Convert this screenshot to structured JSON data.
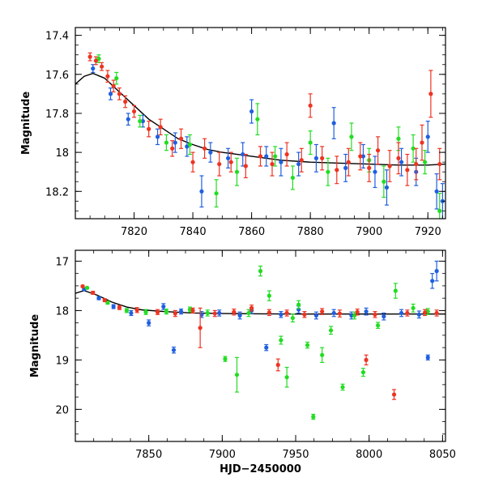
{
  "chart_data": [
    {
      "type": "scatter",
      "panel": "top",
      "ylabel": "Magnitude",
      "xlim": [
        7800,
        7926
      ],
      "ylim": [
        18.34,
        17.36
      ],
      "y_inverted": true,
      "xticks": [
        7820,
        7840,
        7860,
        7880,
        7900,
        7920
      ],
      "xtick_labels": [
        "7820",
        "7840",
        "7860",
        "7880",
        "7900",
        "7920"
      ],
      "yticks": [
        17.4,
        17.6,
        17.8,
        18.0,
        18.2
      ],
      "ytick_labels": [
        "17.4",
        "17.6",
        "17.8",
        "18",
        "18.2"
      ],
      "series": [
        {
          "color": "#1f5fe0",
          "points": [
            [
              7806,
              17.57,
              0.02
            ],
            [
              7812,
              17.7,
              0.03
            ],
            [
              7818,
              17.83,
              0.03
            ],
            [
              7823,
              17.84,
              0.03
            ],
            [
              7828,
              17.92,
              0.04
            ],
            [
              7834,
              17.95,
              0.05
            ],
            [
              7838,
              17.97,
              0.05
            ],
            [
              7843,
              18.2,
              0.08
            ],
            [
              7846,
              18.0,
              0.05
            ],
            [
              7852,
              18.03,
              0.05
            ],
            [
              7857,
              18.01,
              0.06
            ],
            [
              7860,
              17.79,
              0.06
            ],
            [
              7865,
              18.02,
              0.05
            ],
            [
              7870,
              18.05,
              0.07
            ],
            [
              7876,
              18.06,
              0.06
            ],
            [
              7882,
              18.03,
              0.07
            ],
            [
              7888,
              17.85,
              0.08
            ],
            [
              7892,
              18.08,
              0.07
            ],
            [
              7898,
              18.02,
              0.06
            ],
            [
              7902,
              18.1,
              0.08
            ],
            [
              7906,
              18.18,
              0.09
            ],
            [
              7911,
              18.05,
              0.07
            ],
            [
              7916,
              18.1,
              0.07
            ],
            [
              7920,
              17.92,
              0.08
            ],
            [
              7923,
              18.2,
              0.09
            ],
            [
              7925,
              18.25,
              0.09
            ]
          ]
        },
        {
          "color": "#22dd22",
          "points": [
            [
              7808,
              17.52,
              0.02
            ],
            [
              7814,
              17.62,
              0.03
            ],
            [
              7822,
              17.84,
              0.03
            ],
            [
              7831,
              17.95,
              0.04
            ],
            [
              7839,
              17.96,
              0.05
            ],
            [
              7848,
              18.21,
              0.07
            ],
            [
              7855,
              18.1,
              0.07
            ],
            [
              7862,
              17.83,
              0.08
            ],
            [
              7868,
              18.02,
              0.05
            ],
            [
              7874,
              18.13,
              0.06
            ],
            [
              7880,
              17.95,
              0.06
            ],
            [
              7886,
              18.1,
              0.07
            ],
            [
              7894,
              17.92,
              0.07
            ],
            [
              7900,
              18.04,
              0.06
            ],
            [
              7905,
              18.15,
              0.08
            ],
            [
              7910,
              17.93,
              0.06
            ],
            [
              7915,
              17.98,
              0.07
            ],
            [
              7919,
              18.05,
              0.06
            ],
            [
              7924,
              18.3,
              0.09
            ]
          ]
        },
        {
          "color": "#ee3322",
          "points": [
            [
              7805,
              17.51,
              0.02
            ],
            [
              7807,
              17.53,
              0.02
            ],
            [
              7809,
              17.56,
              0.02
            ],
            [
              7811,
              17.61,
              0.03
            ],
            [
              7813,
              17.66,
              0.03
            ],
            [
              7815,
              17.7,
              0.03
            ],
            [
              7817,
              17.74,
              0.03
            ],
            [
              7820,
              17.79,
              0.03
            ],
            [
              7825,
              17.88,
              0.04
            ],
            [
              7829,
              17.87,
              0.04
            ],
            [
              7833,
              17.98,
              0.04
            ],
            [
              7836,
              17.93,
              0.05
            ],
            [
              7840,
              18.05,
              0.05
            ],
            [
              7844,
              17.98,
              0.05
            ],
            [
              7849,
              18.06,
              0.06
            ],
            [
              7853,
              18.05,
              0.05
            ],
            [
              7858,
              18.07,
              0.06
            ],
            [
              7863,
              18.02,
              0.05
            ],
            [
              7867,
              18.06,
              0.06
            ],
            [
              7872,
              18.01,
              0.06
            ],
            [
              7877,
              18.04,
              0.06
            ],
            [
              7880,
              17.76,
              0.06
            ],
            [
              7884,
              18.03,
              0.06
            ],
            [
              7889,
              18.09,
              0.07
            ],
            [
              7893,
              18.05,
              0.07
            ],
            [
              7897,
              18.02,
              0.07
            ],
            [
              7900,
              18.08,
              0.07
            ],
            [
              7903,
              17.99,
              0.07
            ],
            [
              7907,
              18.07,
              0.08
            ],
            [
              7910,
              18.03,
              0.08
            ],
            [
              7913,
              18.09,
              0.08
            ],
            [
              7916,
              18.06,
              0.08
            ],
            [
              7918,
              17.95,
              0.09
            ],
            [
              7921,
              17.7,
              0.12
            ],
            [
              7924,
              18.06,
              0.08
            ]
          ]
        }
      ],
      "model_curve": [
        [
          7800,
          17.65
        ],
        [
          7803,
          17.61
        ],
        [
          7806,
          17.595
        ],
        [
          7810,
          17.62
        ],
        [
          7815,
          17.69
        ],
        [
          7820,
          17.76
        ],
        [
          7825,
          17.83
        ],
        [
          7830,
          17.88
        ],
        [
          7835,
          17.93
        ],
        [
          7840,
          17.96
        ],
        [
          7845,
          17.985
        ],
        [
          7850,
          18.0
        ],
        [
          7860,
          18.02
        ],
        [
          7870,
          18.04
        ],
        [
          7880,
          18.05
        ],
        [
          7890,
          18.055
        ],
        [
          7900,
          18.06
        ],
        [
          7910,
          18.065
        ],
        [
          7920,
          18.065
        ],
        [
          7926,
          18.06
        ]
      ]
    },
    {
      "type": "scatter",
      "panel": "bottom",
      "xlabel": "HJD−2450000",
      "ylabel": "Magnitude",
      "xlim": [
        7800,
        8052
      ],
      "ylim": [
        20.65,
        16.78
      ],
      "y_inverted": true,
      "xticks": [
        7850,
        7900,
        7950,
        8000,
        8050
      ],
      "xtick_labels": [
        "7850",
        "7900",
        "7950",
        "8000",
        "8050"
      ],
      "yticks": [
        17,
        18,
        19,
        20
      ],
      "ytick_labels": [
        "17",
        "18",
        "19",
        "20"
      ],
      "series": [
        {
          "color": "#1f5fe0",
          "points": [
            [
              7806,
              17.57,
              0.02
            ],
            [
              7816,
              17.75,
              0.03
            ],
            [
              7826,
              17.92,
              0.04
            ],
            [
              7838,
              18.05,
              0.05
            ],
            [
              7850,
              18.25,
              0.06
            ],
            [
              7860,
              17.92,
              0.06
            ],
            [
              7867,
              18.8,
              0.06
            ],
            [
              7872,
              18.02,
              0.05
            ],
            [
              7886,
              18.08,
              0.06
            ],
            [
              7898,
              18.05,
              0.06
            ],
            [
              7912,
              18.1,
              0.07
            ],
            [
              7920,
              18.0,
              0.06
            ],
            [
              7930,
              18.75,
              0.06
            ],
            [
              7940,
              18.08,
              0.06
            ],
            [
              7952,
              17.98,
              0.07
            ],
            [
              7964,
              18.1,
              0.07
            ],
            [
              7976,
              18.05,
              0.07
            ],
            [
              7988,
              18.1,
              0.07
            ],
            [
              7998,
              18.02,
              0.07
            ],
            [
              8010,
              18.12,
              0.07
            ],
            [
              8022,
              18.05,
              0.07
            ],
            [
              8034,
              18.08,
              0.07
            ],
            [
              8040,
              18.95,
              0.05
            ],
            [
              8043,
              17.4,
              0.15
            ],
            [
              8046,
              17.2,
              0.2
            ]
          ]
        },
        {
          "color": "#22dd22",
          "points": [
            [
              7808,
              17.54,
              0.02
            ],
            [
              7822,
              17.84,
              0.03
            ],
            [
              7835,
              18.0,
              0.04
            ],
            [
              7848,
              18.03,
              0.05
            ],
            [
              7862,
              18.02,
              0.05
            ],
            [
              7878,
              17.98,
              0.05
            ],
            [
              7890,
              18.05,
              0.06
            ],
            [
              7902,
              18.98,
              0.05
            ],
            [
              7910,
              19.3,
              0.35
            ],
            [
              7918,
              18.05,
              0.07
            ],
            [
              7926,
              17.2,
              0.1
            ],
            [
              7932,
              17.7,
              0.1
            ],
            [
              7940,
              18.6,
              0.08
            ],
            [
              7944,
              19.35,
              0.2
            ],
            [
              7948,
              18.15,
              0.08
            ],
            [
              7952,
              17.88,
              0.08
            ],
            [
              7958,
              18.7,
              0.06
            ],
            [
              7962,
              20.15,
              0.05
            ],
            [
              7968,
              18.9,
              0.15
            ],
            [
              7974,
              18.4,
              0.08
            ],
            [
              7982,
              19.55,
              0.06
            ],
            [
              7990,
              18.1,
              0.07
            ],
            [
              7996,
              19.25,
              0.08
            ],
            [
              8006,
              18.3,
              0.06
            ],
            [
              8018,
              17.6,
              0.15
            ],
            [
              8030,
              17.95,
              0.08
            ],
            [
              8040,
              18.02,
              0.06
            ]
          ]
        },
        {
          "color": "#ee3322",
          "points": [
            [
              7805,
              17.51,
              0.02
            ],
            [
              7812,
              17.64,
              0.03
            ],
            [
              7820,
              17.79,
              0.03
            ],
            [
              7830,
              17.94,
              0.04
            ],
            [
              7842,
              17.99,
              0.05
            ],
            [
              7856,
              18.03,
              0.05
            ],
            [
              7868,
              18.06,
              0.06
            ],
            [
              7880,
              18.0,
              0.05
            ],
            [
              7885,
              18.35,
              0.4
            ],
            [
              7895,
              18.06,
              0.06
            ],
            [
              7908,
              18.03,
              0.06
            ],
            [
              7920,
              17.95,
              0.06
            ],
            [
              7932,
              18.04,
              0.06
            ],
            [
              7938,
              19.1,
              0.12
            ],
            [
              7944,
              18.05,
              0.06
            ],
            [
              7956,
              18.08,
              0.06
            ],
            [
              7968,
              18.02,
              0.06
            ],
            [
              7980,
              18.06,
              0.07
            ],
            [
              7992,
              18.03,
              0.06
            ],
            [
              7998,
              19.0,
              0.1
            ],
            [
              8004,
              18.08,
              0.06
            ],
            [
              8017,
              19.7,
              0.1
            ],
            [
              8026,
              18.05,
              0.06
            ],
            [
              8038,
              18.04,
              0.06
            ],
            [
              8046,
              18.05,
              0.06
            ]
          ]
        }
      ],
      "model_curve": [
        [
          7800,
          17.65
        ],
        [
          7806,
          17.595
        ],
        [
          7815,
          17.69
        ],
        [
          7825,
          17.83
        ],
        [
          7835,
          17.93
        ],
        [
          7845,
          17.985
        ],
        [
          7860,
          18.02
        ],
        [
          7880,
          18.05
        ],
        [
          7900,
          18.06
        ],
        [
          7925,
          18.065
        ],
        [
          7950,
          18.07
        ],
        [
          7975,
          18.07
        ],
        [
          8000,
          18.07
        ],
        [
          8025,
          18.07
        ],
        [
          8052,
          18.07
        ]
      ]
    }
  ]
}
